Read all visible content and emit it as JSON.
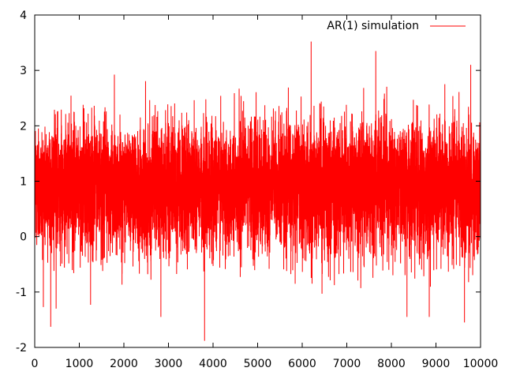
{
  "chart_data": {
    "type": "line",
    "title": "",
    "xlabel": "",
    "ylabel": "",
    "xlim": [
      0,
      10000
    ],
    "ylim": [
      -2,
      4
    ],
    "x_ticks": [
      0,
      1000,
      2000,
      3000,
      4000,
      5000,
      6000,
      7000,
      8000,
      9000,
      10000
    ],
    "x_tick_labels": [
      "0",
      "1000",
      "2000",
      "3000",
      "4000",
      "5000",
      "6000",
      "7000",
      "8000",
      "9000",
      "10000"
    ],
    "y_ticks": [
      -2,
      -1,
      0,
      1,
      2,
      3,
      4
    ],
    "y_tick_labels": [
      "-2",
      "-1",
      "0",
      "1",
      "2",
      "3",
      "4"
    ],
    "grid": false,
    "legend_position": "top-right",
    "series": [
      {
        "name": "AR(1) simulation",
        "color": "#ff0000",
        "n_points": 10000,
        "mean": 0.9,
        "approx_std": 0.55,
        "min": -1.88,
        "max": 3.52,
        "notable_points": [
          {
            "x": 3810,
            "y": -1.88
          },
          {
            "x": 6200,
            "y": 3.52
          },
          {
            "x": 7650,
            "y": 3.35
          },
          {
            "x": 9780,
            "y": 3.1
          },
          {
            "x": 9640,
            "y": -1.55
          },
          {
            "x": 2830,
            "y": -1.45
          },
          {
            "x": 8350,
            "y": -1.45
          },
          {
            "x": 8850,
            "y": -1.45
          },
          {
            "x": 480,
            "y": -1.3
          }
        ]
      }
    ]
  }
}
